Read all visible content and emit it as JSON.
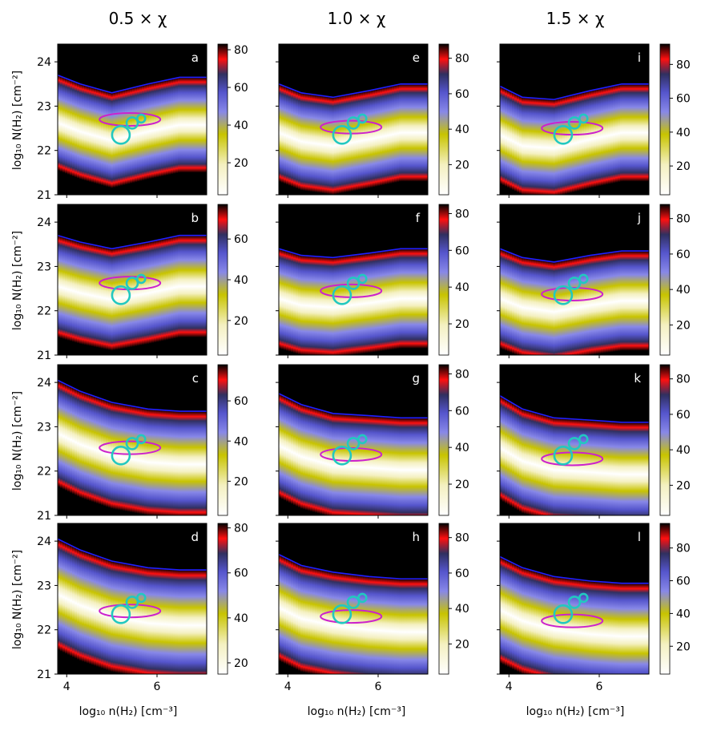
{
  "figure": {
    "column_titles": [
      "0.5 × χ",
      "1.0 × χ",
      "1.5 × χ"
    ],
    "xlabel": "log₁₀ n(H₂) [cm⁻³]",
    "ylabel": "log₁₀ N(H₂) [cm⁻²]",
    "colors": {
      "colormap": [
        "#ffffff",
        "#f4f0c0",
        "#c8c400",
        "#8888e8",
        "#5555cc",
        "#303060",
        "#ff1010",
        "#000000"
      ],
      "contour": "#cc22cc",
      "circle": "#22c8c0",
      "edge": "#2020ff"
    }
  },
  "chart_data": [
    {
      "label": "a",
      "type": "heatmap",
      "xlim": [
        3.8,
        7.1
      ],
      "ylim": [
        21,
        24.4
      ],
      "xticks": [
        4,
        6
      ],
      "yticks": [
        21,
        22,
        23,
        24
      ],
      "cbar_ticks": [
        20,
        40,
        60,
        80
      ],
      "cbar_range": [
        3,
        83
      ],
      "ridge": [
        [
          3.8,
          23.0
        ],
        [
          4.3,
          22.8
        ],
        [
          5.0,
          22.6
        ],
        [
          5.8,
          22.8
        ],
        [
          6.5,
          22.95
        ],
        [
          7.1,
          22.95
        ]
      ],
      "width": 0.7
    },
    {
      "label": "e",
      "type": "heatmap",
      "xlim": [
        3.8,
        7.1
      ],
      "ylim": [
        21,
        24.4
      ],
      "xticks": [
        4,
        6
      ],
      "yticks": [
        21,
        22,
        23,
        24
      ],
      "cbar_ticks": [
        20,
        40,
        60,
        80
      ],
      "cbar_range": [
        3,
        88
      ],
      "ridge": [
        [
          3.8,
          22.75
        ],
        [
          4.3,
          22.55
        ],
        [
          5.0,
          22.45
        ],
        [
          5.8,
          22.6
        ],
        [
          6.5,
          22.75
        ],
        [
          7.1,
          22.75
        ]
      ],
      "width": 0.75
    },
    {
      "label": "i",
      "type": "heatmap",
      "xlim": [
        3.8,
        7.1
      ],
      "ylim": [
        21,
        24.4
      ],
      "xticks": [
        4,
        6
      ],
      "yticks": [
        21,
        22,
        23,
        24
      ],
      "cbar_ticks": [
        20,
        40,
        60,
        80
      ],
      "cbar_range": [
        3,
        92
      ],
      "ridge": [
        [
          3.8,
          22.7
        ],
        [
          4.3,
          22.45
        ],
        [
          5.0,
          22.4
        ],
        [
          5.8,
          22.6
        ],
        [
          6.5,
          22.75
        ],
        [
          7.1,
          22.75
        ]
      ],
      "width": 0.75
    },
    {
      "label": "b",
      "type": "heatmap",
      "xlim": [
        3.8,
        7.1
      ],
      "ylim": [
        21,
        24.4
      ],
      "xticks": [
        4,
        6
      ],
      "yticks": [
        21,
        22,
        23,
        24
      ],
      "cbar_ticks": [
        20,
        40,
        60
      ],
      "cbar_range": [
        3,
        77
      ],
      "ridge": [
        [
          3.8,
          22.85
        ],
        [
          4.3,
          22.7
        ],
        [
          5.0,
          22.55
        ],
        [
          5.8,
          22.7
        ],
        [
          6.5,
          22.85
        ],
        [
          7.1,
          22.85
        ]
      ],
      "width": 0.85
    },
    {
      "label": "f",
      "type": "heatmap",
      "xlim": [
        3.8,
        7.1
      ],
      "ylim": [
        21,
        24.4
      ],
      "xticks": [
        4,
        6
      ],
      "yticks": [
        21,
        22,
        23,
        24
      ],
      "cbar_ticks": [
        20,
        40,
        60,
        80
      ],
      "cbar_range": [
        3,
        85
      ],
      "ridge": [
        [
          3.8,
          22.6
        ],
        [
          4.3,
          22.45
        ],
        [
          5.0,
          22.4
        ],
        [
          5.8,
          22.5
        ],
        [
          6.5,
          22.6
        ],
        [
          7.1,
          22.6
        ]
      ],
      "width": 0.8
    },
    {
      "label": "j",
      "type": "heatmap",
      "xlim": [
        3.8,
        7.1
      ],
      "ylim": [
        21,
        24.4
      ],
      "xticks": [
        4,
        6
      ],
      "yticks": [
        21,
        22,
        23,
        24
      ],
      "cbar_ticks": [
        20,
        40,
        60,
        80
      ],
      "cbar_range": [
        3,
        88
      ],
      "ridge": [
        [
          3.8,
          22.6
        ],
        [
          4.3,
          22.4
        ],
        [
          5.0,
          22.3
        ],
        [
          5.8,
          22.45
        ],
        [
          6.5,
          22.55
        ],
        [
          7.1,
          22.55
        ]
      ],
      "width": 0.8
    },
    {
      "label": "c",
      "type": "heatmap",
      "xlim": [
        3.8,
        7.1
      ],
      "ylim": [
        21,
        24.4
      ],
      "xticks": [
        4,
        6
      ],
      "yticks": [
        21,
        22,
        23,
        24
      ],
      "cbar_ticks": [
        20,
        40,
        60
      ],
      "cbar_range": [
        3,
        78
      ],
      "ridge": [
        [
          3.8,
          23.1
        ],
        [
          4.3,
          22.85
        ],
        [
          5.0,
          22.6
        ],
        [
          5.8,
          22.45
        ],
        [
          6.5,
          22.4
        ],
        [
          7.1,
          22.4
        ]
      ],
      "width": 0.95
    },
    {
      "label": "g",
      "type": "heatmap",
      "xlim": [
        3.8,
        7.1
      ],
      "ylim": [
        21,
        24.4
      ],
      "xticks": [
        4,
        6
      ],
      "yticks": [
        21,
        22,
        23,
        24
      ],
      "cbar_ticks": [
        20,
        40,
        60,
        80
      ],
      "cbar_range": [
        3,
        85
      ],
      "ridge": [
        [
          3.8,
          22.85
        ],
        [
          4.3,
          22.6
        ],
        [
          5.0,
          22.4
        ],
        [
          5.8,
          22.35
        ],
        [
          6.5,
          22.3
        ],
        [
          7.1,
          22.3
        ]
      ],
      "width": 0.9
    },
    {
      "label": "k",
      "type": "heatmap",
      "xlim": [
        3.8,
        7.1
      ],
      "ylim": [
        21,
        24.4
      ],
      "xticks": [
        4,
        6
      ],
      "yticks": [
        21,
        22,
        23,
        24
      ],
      "cbar_ticks": [
        20,
        40,
        60,
        80
      ],
      "cbar_range": [
        3,
        88
      ],
      "ridge": [
        [
          3.8,
          22.8
        ],
        [
          4.3,
          22.5
        ],
        [
          5.0,
          22.3
        ],
        [
          5.8,
          22.25
        ],
        [
          6.5,
          22.2
        ],
        [
          7.1,
          22.2
        ]
      ],
      "width": 0.9
    },
    {
      "label": "d",
      "type": "heatmap",
      "xlim": [
        3.8,
        7.1
      ],
      "ylim": [
        21,
        24.4
      ],
      "xticks": [
        4,
        6
      ],
      "yticks": [
        21,
        22,
        23,
        24
      ],
      "cbar_ticks": [
        20,
        40,
        60,
        80
      ],
      "cbar_range": [
        15,
        82
      ],
      "ridge": [
        [
          3.8,
          23.0
        ],
        [
          4.3,
          22.75
        ],
        [
          5.0,
          22.5
        ],
        [
          5.8,
          22.35
        ],
        [
          6.5,
          22.3
        ],
        [
          7.1,
          22.3
        ]
      ],
      "width": 1.05
    },
    {
      "label": "h",
      "type": "heatmap",
      "xlim": [
        3.8,
        7.1
      ],
      "ylim": [
        21,
        24.4
      ],
      "xticks": [
        4,
        6
      ],
      "yticks": [
        21,
        22,
        23,
        24
      ],
      "cbar_ticks": [
        20,
        40,
        60,
        80
      ],
      "cbar_range": [
        3,
        88
      ],
      "ridge": [
        [
          3.8,
          22.75
        ],
        [
          4.3,
          22.5
        ],
        [
          5.0,
          22.35
        ],
        [
          5.8,
          22.25
        ],
        [
          6.5,
          22.2
        ],
        [
          7.1,
          22.2
        ]
      ],
      "width": 0.95
    },
    {
      "label": "l",
      "type": "heatmap",
      "xlim": [
        3.8,
        7.1
      ],
      "ylim": [
        21,
        24.4
      ],
      "xticks": [
        4,
        6
      ],
      "yticks": [
        21,
        22,
        23,
        24
      ],
      "cbar_ticks": [
        20,
        40,
        60,
        80
      ],
      "cbar_range": [
        3,
        95
      ],
      "ridge": [
        [
          3.8,
          22.7
        ],
        [
          4.3,
          22.45
        ],
        [
          5.0,
          22.25
        ],
        [
          5.8,
          22.15
        ],
        [
          6.5,
          22.1
        ],
        [
          7.1,
          22.1
        ]
      ],
      "width": 0.95
    }
  ]
}
